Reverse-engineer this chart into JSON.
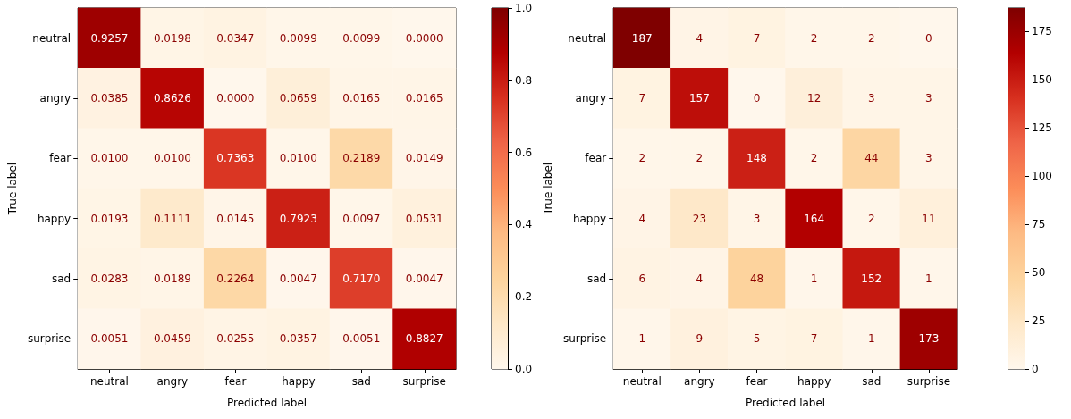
{
  "chart_data": [
    {
      "type": "heatmap",
      "xlabel": "Predicted label",
      "ylabel": "True label",
      "categories": [
        "neutral",
        "angry",
        "fear",
        "happy",
        "sad",
        "surprise"
      ],
      "y_categories": [
        "neutral",
        "angry",
        "fear",
        "happy",
        "sad",
        "surprise"
      ],
      "cells": [
        [
          0.9257,
          0.0198,
          0.0347,
          0.0099,
          0.0099,
          0.0
        ],
        [
          0.0385,
          0.8626,
          0.0,
          0.0659,
          0.0165,
          0.0165
        ],
        [
          0.01,
          0.01,
          0.7363,
          0.01,
          0.2189,
          0.0149
        ],
        [
          0.0193,
          0.1111,
          0.0145,
          0.7923,
          0.0097,
          0.0531
        ],
        [
          0.0283,
          0.0189,
          0.2264,
          0.0047,
          0.717,
          0.0047
        ],
        [
          0.0051,
          0.0459,
          0.0255,
          0.0357,
          0.0051,
          0.8827
        ]
      ],
      "cell_labels": [
        [
          "0.9257",
          "0.0198",
          "0.0347",
          "0.0099",
          "0.0099",
          "0.0000"
        ],
        [
          "0.0385",
          "0.8626",
          "0.0000",
          "0.0659",
          "0.0165",
          "0.0165"
        ],
        [
          "0.0100",
          "0.0100",
          "0.7363",
          "0.0100",
          "0.2189",
          "0.0149"
        ],
        [
          "0.0193",
          "0.1111",
          "0.0145",
          "0.7923",
          "0.0097",
          "0.0531"
        ],
        [
          "0.0283",
          "0.0189",
          "0.2264",
          "0.0047",
          "0.7170",
          "0.0047"
        ],
        [
          "0.0051",
          "0.0459",
          "0.0255",
          "0.0357",
          "0.0051",
          "0.8827"
        ]
      ],
      "clim": [
        0,
        1
      ],
      "cticks": [
        {
          "value": 0,
          "label": "0.0"
        },
        {
          "value": 0.2,
          "label": "0.2"
        },
        {
          "value": 0.4,
          "label": "0.4"
        },
        {
          "value": 0.6,
          "label": "0.6"
        },
        {
          "value": 0.8,
          "label": "0.8"
        },
        {
          "value": 1,
          "label": "1.0"
        }
      ]
    },
    {
      "type": "heatmap",
      "xlabel": "Predicted label",
      "ylabel": "True label",
      "categories": [
        "neutral",
        "angry",
        "fear",
        "happy",
        "sad",
        "surprise"
      ],
      "y_categories": [
        "neutral",
        "angry",
        "fear",
        "happy",
        "sad",
        "surprise"
      ],
      "cells": [
        [
          187,
          4,
          7,
          2,
          2,
          0
        ],
        [
          7,
          157,
          0,
          12,
          3,
          3
        ],
        [
          2,
          2,
          148,
          2,
          44,
          3
        ],
        [
          4,
          23,
          3,
          164,
          2,
          11
        ],
        [
          6,
          4,
          48,
          1,
          152,
          1
        ],
        [
          1,
          9,
          5,
          7,
          1,
          173
        ]
      ],
      "data_labels": true,
      "clim": [
        0,
        187
      ],
      "cticks": [
        0,
        25,
        50,
        75,
        100,
        125,
        150,
        175
      ]
    }
  ]
}
